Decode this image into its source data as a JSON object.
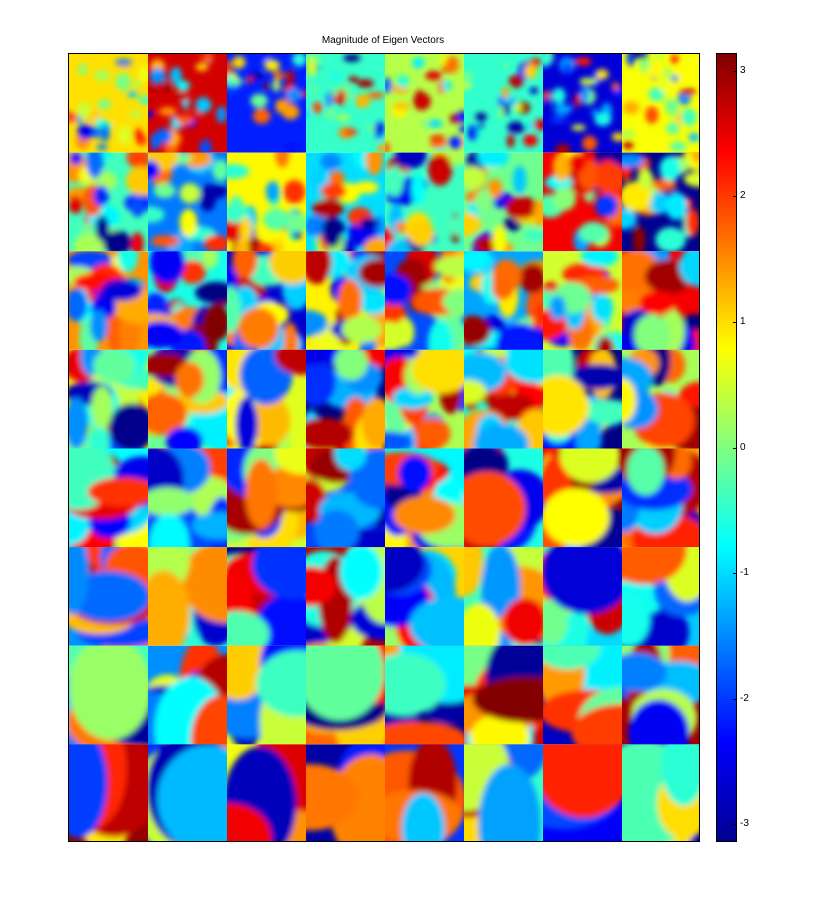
{
  "chart_data": {
    "type": "heatmap",
    "title": "Magnitude of Eigen Vectors",
    "xlabel": "",
    "ylabel": "",
    "grid_rows": 8,
    "grid_cols": 8,
    "colormap": "jet",
    "colorbar": {
      "range": [
        -3.14,
        3.14
      ],
      "ticks": [
        -3,
        -2,
        -1,
        0,
        1,
        2,
        3
      ],
      "tick_labels": [
        "-3",
        "-2",
        "-1",
        "0",
        "1",
        "2",
        "3"
      ],
      "placement": "right"
    }
  }
}
